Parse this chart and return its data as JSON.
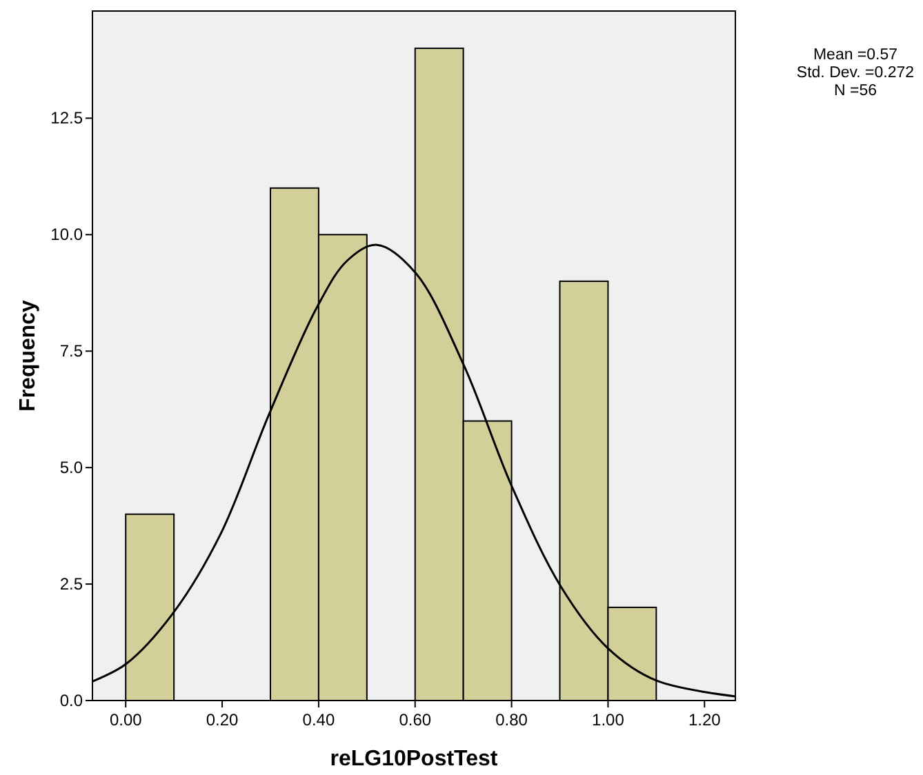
{
  "chart_data": {
    "type": "histogram",
    "xlabel": "reLG10PostTest",
    "ylabel": "Frequency",
    "bins": [
      0,
      0.1,
      0.2,
      0.3,
      0.4,
      0.5,
      0.6,
      0.7,
      0.8,
      0.9,
      1.0,
      1.1
    ],
    "series": [
      {
        "color": "#d3cf99",
        "values": [
          4,
          0,
          0,
          11,
          10,
          0,
          14,
          6,
          0,
          9,
          2
        ]
      },
      {
        "type": "line",
        "color": "#000000",
        "x": [
          -0.069,
          0,
          0.097,
          0.197,
          0.297,
          0.397,
          0.46,
          0.521,
          0.6,
          0.7,
          0.8,
          0.902,
          1.0,
          1.1,
          1.264
        ],
        "values": [
          0.41,
          0.78,
          1.86,
          3.58,
          6.14,
          8.45,
          9.45,
          9.78,
          9.19,
          7.22,
          4.61,
          2.45,
          1.12,
          0.43,
          0.09
        ]
      }
    ],
    "xlim": [
      -0.069,
      1.264
    ],
    "ylim": [
      0,
      14.8
    ],
    "xticks": [
      {
        "value": 0,
        "label": "0.00"
      },
      {
        "value": 0.2,
        "label": "0.20"
      },
      {
        "value": 0.4,
        "label": "0.40"
      },
      {
        "value": 0.6,
        "label": "0.60"
      },
      {
        "value": 0.8,
        "label": "0.80"
      },
      {
        "value": 1.0,
        "label": "1.00"
      },
      {
        "value": 1.2,
        "label": "1.20"
      }
    ],
    "yticks": [
      {
        "value": 0,
        "label": "0.0"
      },
      {
        "value": 2.5,
        "label": "2.5"
      },
      {
        "value": 5,
        "label": "5.0"
      },
      {
        "value": 7.5,
        "label": "7.5"
      },
      {
        "value": 10,
        "label": "10.0"
      },
      {
        "value": 12.5,
        "label": "12.5"
      }
    ],
    "annotations": [
      "Mean =0.57",
      "Std. Dev. =0.272",
      "N =56"
    ],
    "grid": false
  }
}
